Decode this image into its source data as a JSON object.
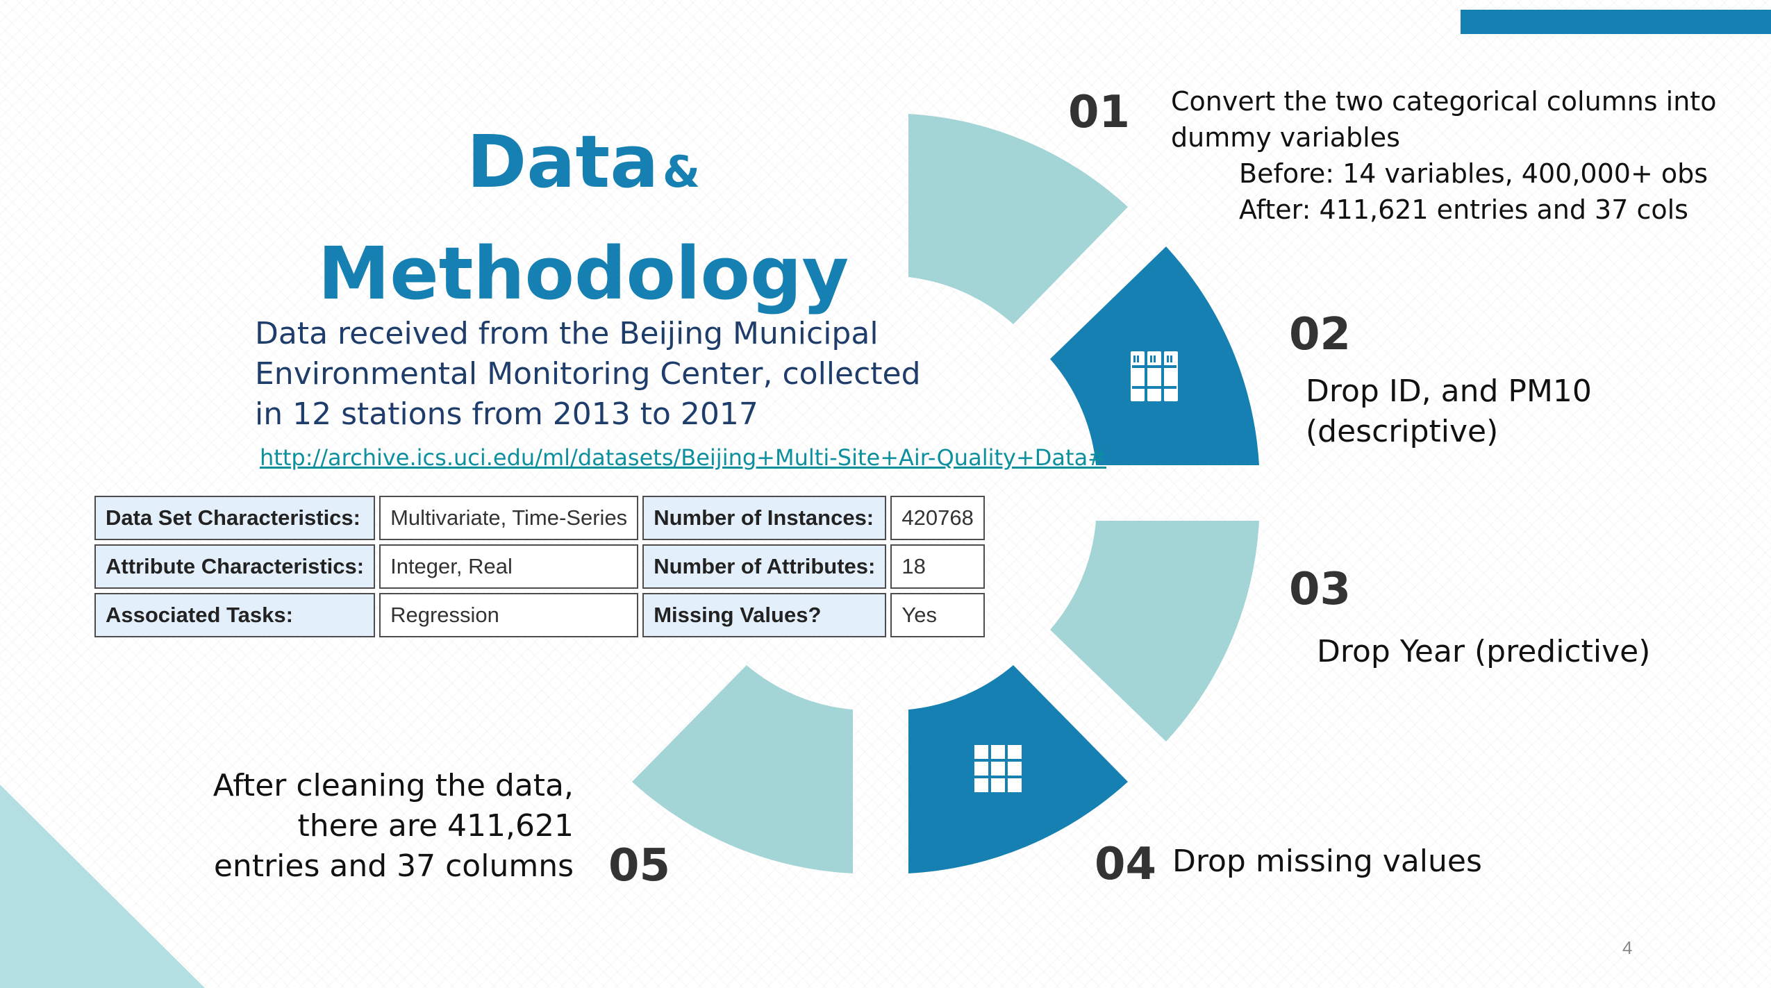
{
  "title": {
    "main": "Data",
    "amp": "&",
    "second": "Methodology"
  },
  "intro": {
    "lines": [
      "Data received from the Beijing Municipal",
      "Environmental Monitoring Center, collected",
      "in 12 stations from 2013 to 2017"
    ],
    "link": "http://archive.ics.uci.edu/ml/datasets/Beijing+Multi-Site+Air-Quality+Data#"
  },
  "dataset_table": {
    "rows": [
      [
        "Data Set Characteristics:",
        "Multivariate, Time-Series",
        "Number of Instances:",
        "420768"
      ],
      [
        "Attribute Characteristics:",
        "Integer, Real",
        "Number of Attributes:",
        "18"
      ],
      [
        "Associated Tasks:",
        "Regression",
        "Missing Values?",
        "Yes"
      ]
    ]
  },
  "steps": {
    "s01": {
      "number": "01",
      "lines": [
        "Convert the two categorical columns into",
        "dummy variables"
      ],
      "sub": [
        "Before: 14 variables, 400,000+ obs",
        "After: 411,621 entries and 37 cols"
      ]
    },
    "s02": {
      "number": "02",
      "lines": [
        "Drop ID, and PM10",
        "(descriptive)"
      ]
    },
    "s03": {
      "number": "03",
      "lines": [
        "Drop Year (predictive)"
      ]
    },
    "s04": {
      "number": "04",
      "lines": [
        "Drop missing values"
      ]
    },
    "s05": {
      "number": "05",
      "lines": [
        "After cleaning the data,",
        "there are 411,621",
        "entries and 37 columns"
      ]
    }
  },
  "icons": {
    "segment_02": "books-icon",
    "segment_04": "grid-icon"
  },
  "colors": {
    "accent": "#1580b1",
    "light": "#a3d4d6",
    "corner": "#b4dfe2"
  },
  "page_number": "4"
}
